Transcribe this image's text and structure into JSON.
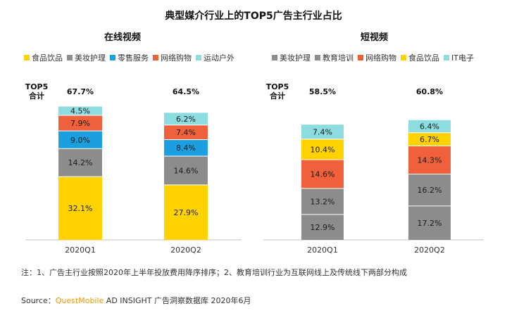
{
  "title": "典型媒介行业上的TOP5广告主行业占比",
  "note": "注：1、广告主行业按照2020年上半年投放费用降序排序；2、教育培训行业为互联网线上及传统线下两部分构成",
  "source": {
    "prefix": "Source：",
    "brand": "QuestMobile",
    "suffix": " AD INSIGHT 广告洞察数据库 2020年6月"
  },
  "colors": {
    "食品饮品": "#ffd200",
    "美妆护理": "#8c8c8c",
    "零售服务": "#1c9fe0",
    "网络购物": "#f0603a",
    "运动户外": "#8ddde0",
    "教育培训": "#8c8c8c",
    "IT电子": "#8ddde0"
  },
  "chart_data": [
    {
      "type": "bar",
      "stacked": true,
      "title": "在线视频",
      "total_label": "TOP5\n合计",
      "categories": [
        "2020Q1",
        "2020Q2"
      ],
      "totals": [
        "67.7%",
        "64.5%"
      ],
      "legend_position": "top",
      "series": [
        {
          "name": "食品饮品",
          "values": [
            32.1,
            27.9
          ]
        },
        {
          "name": "美妆护理",
          "values": [
            14.2,
            14.6
          ]
        },
        {
          "name": "零售服务",
          "values": [
            9.0,
            8.4
          ]
        },
        {
          "name": "网络购物",
          "values": [
            7.9,
            7.4
          ]
        },
        {
          "name": "运动户外",
          "values": [
            4.5,
            6.2
          ]
        }
      ]
    },
    {
      "type": "bar",
      "stacked": true,
      "title": "短视频",
      "total_label": "TOP5\n合计",
      "categories": [
        "2020Q1",
        "2020Q2"
      ],
      "totals": [
        "58.5%",
        "60.8%"
      ],
      "legend_position": "top",
      "series": [
        {
          "name": "美妆护理",
          "values": [
            12.9,
            17.2
          ]
        },
        {
          "name": "教育培训",
          "values": [
            13.2,
            16.2
          ]
        },
        {
          "name": "网络购物",
          "values": [
            14.6,
            14.3
          ]
        },
        {
          "name": "食品饮品",
          "values": [
            10.4,
            6.7
          ]
        },
        {
          "name": "IT电子",
          "values": [
            7.4,
            6.4
          ]
        }
      ]
    }
  ]
}
